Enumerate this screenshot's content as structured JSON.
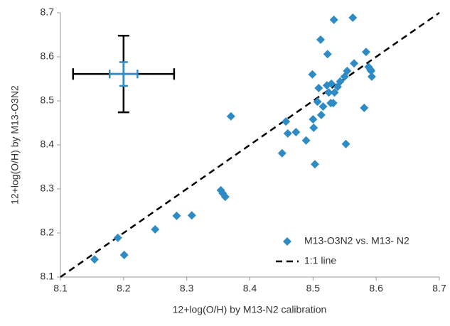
{
  "chart_data": {
    "type": "scatter",
    "xlabel": "12+log(O/H) by M13-N2 calibration",
    "ylabel": "12+log(O/H) by M13-O3N2",
    "xlim": [
      8.1,
      8.7
    ],
    "ylim": [
      8.1,
      8.7
    ],
    "xticks": [
      8.1,
      8.2,
      8.3,
      8.4,
      8.5,
      8.6,
      8.7
    ],
    "yticks": [
      8.1,
      8.2,
      8.3,
      8.4,
      8.5,
      8.6,
      8.7
    ],
    "grid": false,
    "legend": "lower right",
    "series": [
      {
        "name": "M13-O3N2 vs. M13- N2",
        "color": "#2e8bc4",
        "x": [
          8.154,
          8.191,
          8.201,
          8.25,
          8.284,
          8.308,
          8.354,
          8.357,
          8.361,
          8.37,
          8.451,
          8.457,
          8.46,
          8.473,
          8.489,
          8.499,
          8.5,
          8.501,
          8.503,
          8.507,
          8.509,
          8.512,
          8.513,
          8.516,
          8.522,
          8.523,
          8.525,
          8.528,
          8.529,
          8.534,
          8.539,
          8.532,
          8.533,
          8.565,
          8.543,
          8.55,
          8.554,
          8.552,
          8.581,
          8.584,
          8.588,
          8.591,
          8.593,
          8.592,
          8.563
        ],
        "y": [
          8.14,
          8.189,
          8.15,
          8.208,
          8.239,
          8.24,
          8.297,
          8.29,
          8.282,
          8.465,
          8.381,
          8.453,
          8.426,
          8.429,
          8.41,
          8.56,
          8.458,
          8.439,
          8.356,
          8.498,
          8.529,
          8.639,
          8.468,
          8.487,
          8.535,
          8.606,
          8.519,
          8.495,
          8.539,
          8.519,
          8.532,
          8.495,
          8.684,
          8.585,
          8.544,
          8.555,
          8.568,
          8.402,
          8.484,
          8.611,
          8.577,
          8.571,
          8.555,
          8.568,
          8.689
        ]
      }
    ],
    "lines": [
      {
        "name": "1:1 line",
        "color": "#000000",
        "x": [
          8.1,
          8.7
        ],
        "y": [
          8.1,
          8.7
        ]
      }
    ],
    "error_bars": [
      {
        "x": 8.2,
        "y": 8.561,
        "xerr": 0.08,
        "yerr": 0.087,
        "color": "#000000"
      },
      {
        "x": 8.2,
        "y": 8.561,
        "xerr": 0.022,
        "yerr": 0.027,
        "color": "#2e8bc4"
      }
    ]
  }
}
